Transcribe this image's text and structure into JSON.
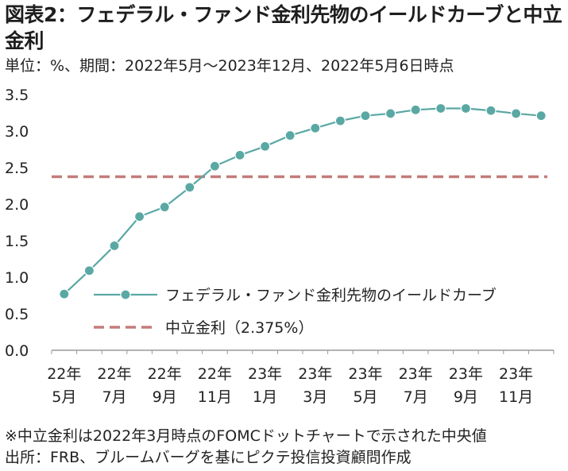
{
  "title": "図表2：フェデラル・ファンド金利先物のイールドカーブと中立金利",
  "subtitle": "単位：%、期間：2022年5月～2023年12月、2022年5月6日時点",
  "notes": {
    "note1": "※中立金利は2022年3月時点のFOMCドットチャートで示された中央値",
    "note2": "出所：FRB、ブルームバーグを基にピクテ投信投資顧問作成"
  },
  "colors": {
    "curve": "#5aa8a4",
    "neutral": "#c57b7a",
    "axis": "#999999",
    "text": "#222222"
  },
  "chart_data": {
    "type": "line",
    "x": [
      "2022-05",
      "2022-06",
      "2022-07",
      "2022-08",
      "2022-09",
      "2022-10",
      "2022-11",
      "2022-12",
      "2023-01",
      "2023-02",
      "2023-03",
      "2023-04",
      "2023-05",
      "2023-06",
      "2023-07",
      "2023-08",
      "2023-09",
      "2023-10",
      "2023-11",
      "2023-12"
    ],
    "x_tick_labels": [
      {
        "top": "22年",
        "bottom": "5月"
      },
      {
        "top": "22年",
        "bottom": "7月"
      },
      {
        "top": "22年",
        "bottom": "9月"
      },
      {
        "top": "22年",
        "bottom": "11月"
      },
      {
        "top": "23年",
        "bottom": "1月"
      },
      {
        "top": "23年",
        "bottom": "3月"
      },
      {
        "top": "23年",
        "bottom": "5月"
      },
      {
        "top": "23年",
        "bottom": "7月"
      },
      {
        "top": "23年",
        "bottom": "9月"
      },
      {
        "top": "23年",
        "bottom": "11月"
      }
    ],
    "y_ticks": [
      "0.0",
      "0.5",
      "1.0",
      "1.5",
      "2.0",
      "2.5",
      "3.0",
      "3.5"
    ],
    "ylim": [
      0,
      3.5
    ],
    "series": [
      {
        "name": "フェデラル・ファンド金利先物のイールドカーブ",
        "style": "line-with-markers",
        "values": [
          0.77,
          1.09,
          1.43,
          1.83,
          1.96,
          2.23,
          2.52,
          2.67,
          2.79,
          2.94,
          3.04,
          3.14,
          3.21,
          3.24,
          3.29,
          3.31,
          3.31,
          3.28,
          3.24,
          3.21
        ]
      },
      {
        "name": "中立金利（2.375%）",
        "style": "dashed",
        "values": [
          2.375,
          2.375,
          2.375,
          2.375,
          2.375,
          2.375,
          2.375,
          2.375,
          2.375,
          2.375,
          2.375,
          2.375,
          2.375,
          2.375,
          2.375,
          2.375,
          2.375,
          2.375,
          2.375,
          2.375
        ]
      }
    ],
    "legend_position": "bottom-right",
    "grid": false
  }
}
